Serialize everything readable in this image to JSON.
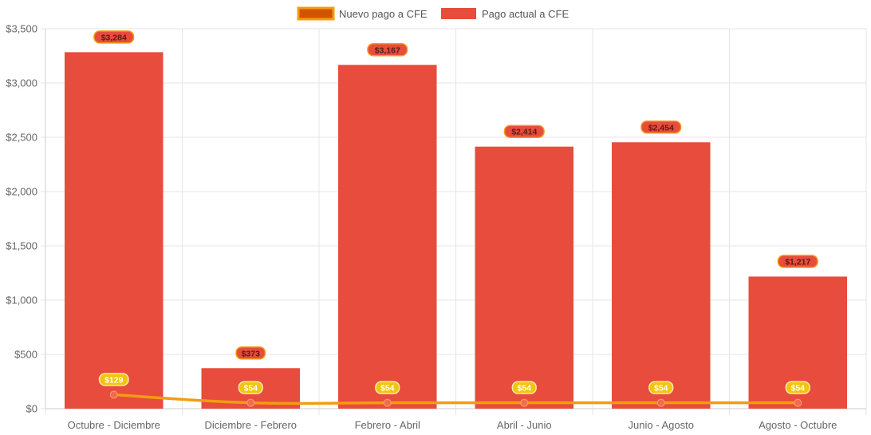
{
  "chart_data": {
    "type": "bar",
    "categories": [
      "Octubre - Diciembre",
      "Diciembre - Febrero",
      "Febrero - Abril",
      "Abril - Junio",
      "Junio - Agosto",
      "Agosto - Octubre"
    ],
    "series": [
      {
        "name": "Nuevo pago a CFE",
        "type": "line",
        "values": [
          129,
          54,
          54,
          54,
          54,
          54
        ],
        "labels": [
          "$129",
          "$54",
          "$54",
          "$54",
          "$54",
          "$54"
        ]
      },
      {
        "name": "Pago actual a CFE",
        "type": "bar",
        "values": [
          3284,
          373,
          3167,
          2414,
          2454,
          1217
        ],
        "labels": [
          "$3,284",
          "$373",
          "$3,167",
          "$2,414",
          "$2,454",
          "$1,217"
        ]
      }
    ],
    "y_ticks": [
      "$0",
      "$500",
      "$1,000",
      "$1,500",
      "$2,000",
      "$2,500",
      "$3,000",
      "$3,500"
    ],
    "ylim": [
      0,
      3500
    ],
    "grid": true,
    "legend_position": "top-center",
    "colors": {
      "bar": "#e74c3c",
      "line": "#f39c12",
      "line_point": "#f26c4f",
      "legend_line_fill": "#d35400",
      "bar_label_bg": "#e74c3c",
      "bar_label_border": "#f39c12",
      "line_label_bg": "#f1c40f",
      "grid": "#e5e5e5"
    }
  }
}
